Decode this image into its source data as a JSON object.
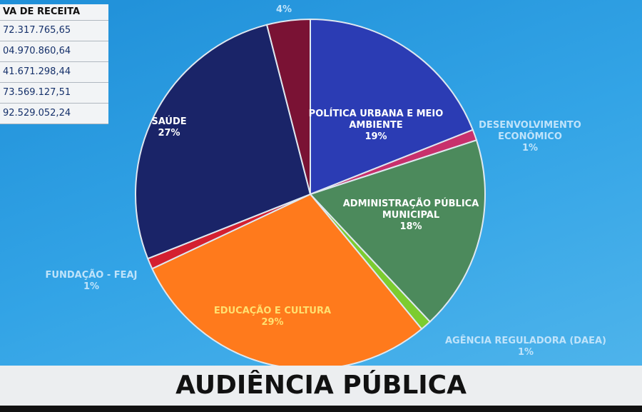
{
  "chart_data": {
    "type": "pie",
    "categories": [
      "POLÍTICA URBANA E MEIO AMBIENTE",
      "DESENVOLVIMENTO ECONÔMICO",
      "ADMINISTRAÇÃO PÚBLICA MUNICIPAL",
      "AGÊNCIA REGULADORA (DAEA)",
      "EDUCAÇÃO E CULTURA",
      "FUNDAÇÃO - FEAJ",
      "SAÚDE",
      null
    ],
    "values": [
      19,
      1,
      18,
      1,
      29,
      1,
      27,
      4
    ],
    "value_labels": [
      "19%",
      "1%",
      "18%",
      "1%",
      "29%",
      "1%",
      "27%",
      "4%"
    ],
    "colors": [
      "#2b3cb4",
      "#c8306c",
      "#4c8a5c",
      "#7ccc30",
      "#ff7a1c",
      "#d42030",
      "#1a2468",
      "#7a1234"
    ]
  },
  "table": {
    "header": "VA DE RECEITA",
    "rows": [
      "72.317.765,65",
      "04.970.860,64",
      "41.671.298,44",
      "73.569.127,51",
      "92.529.052,24"
    ]
  },
  "banner": "AUDIÊNCIA PÚBLICA"
}
